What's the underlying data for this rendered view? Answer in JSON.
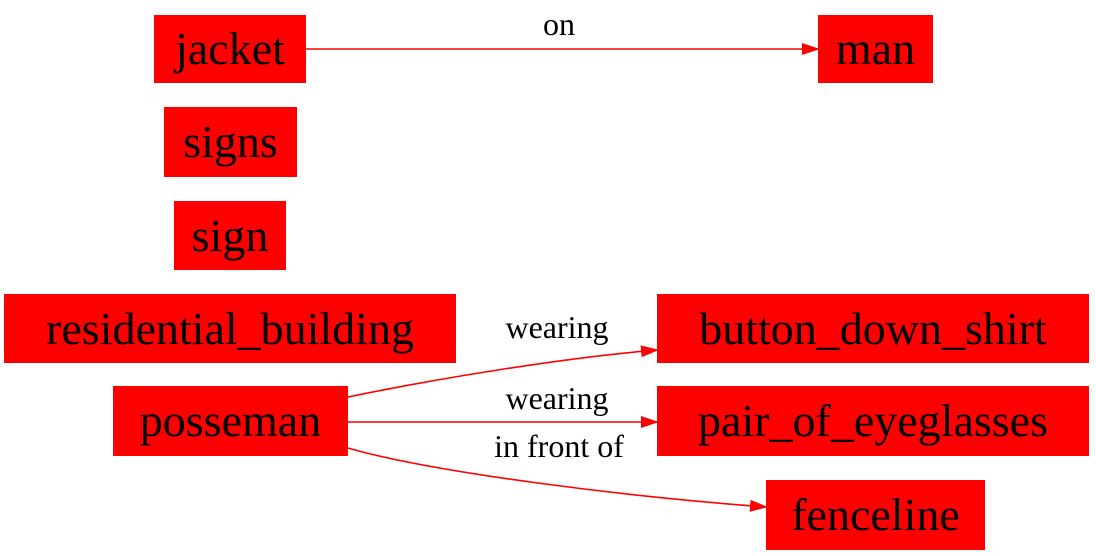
{
  "diagram": {
    "nodes": {
      "jacket": "jacket",
      "man": "man",
      "signs": "signs",
      "sign": "sign",
      "residential_building": "residential_building",
      "posseman": "posseman",
      "button_down_shirt": "button_down_shirt",
      "pair_of_eyeglasses": "pair_of_eyeglasses",
      "fenceline": "fenceline"
    },
    "edges": [
      {
        "from": "jacket",
        "to": "man",
        "label": "on"
      },
      {
        "from": "posseman",
        "to": "button_down_shirt",
        "label": "wearing"
      },
      {
        "from": "posseman",
        "to": "pair_of_eyeglasses",
        "label": "wearing"
      },
      {
        "from": "posseman",
        "to": "fenceline",
        "label": "in front of"
      }
    ],
    "colors": {
      "node_fill": "#ff0000",
      "edge": "#ff0000",
      "text": "#000000"
    }
  }
}
